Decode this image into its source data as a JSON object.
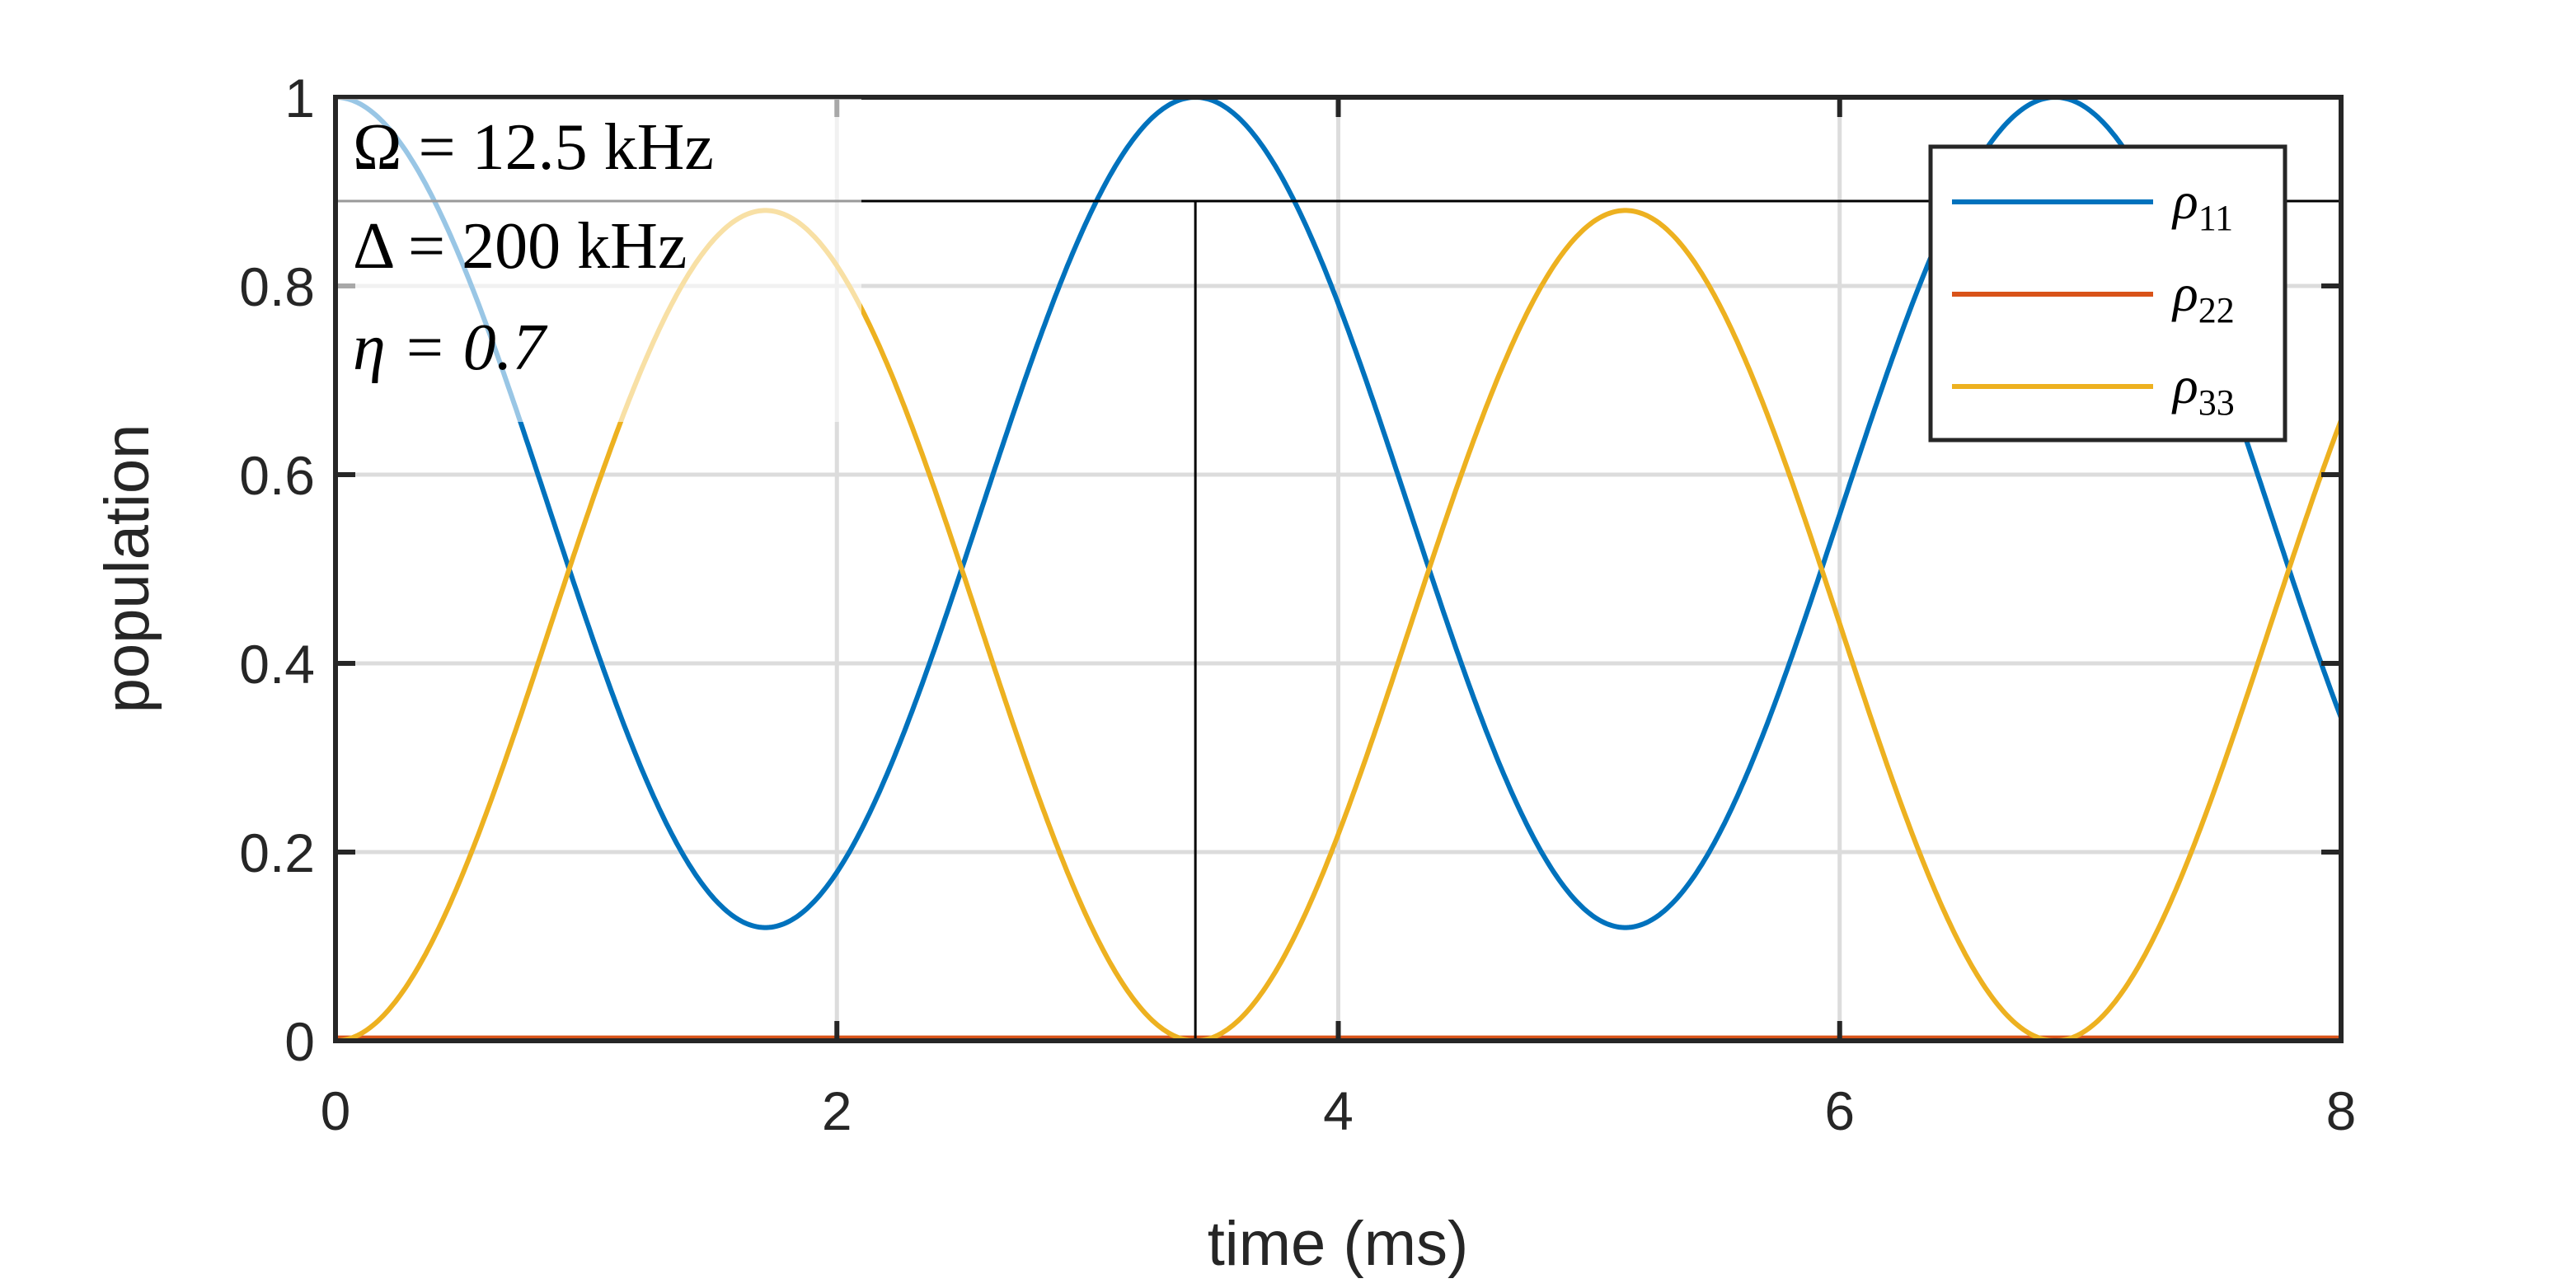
{
  "chart_data": {
    "type": "line",
    "xlabel": "time (ms)",
    "ylabel": "population",
    "xlim": [
      0,
      8
    ],
    "ylim": [
      0,
      1
    ],
    "x_ticks": [
      0,
      2,
      4,
      6,
      8
    ],
    "y_ticks": [
      0,
      0.2,
      0.4,
      0.6,
      0.8,
      1
    ],
    "x_tick_labels": [
      "0",
      "2",
      "4",
      "6",
      "8"
    ],
    "y_tick_labels": [
      "0",
      "0.2",
      "0.4",
      "0.6",
      "0.8",
      "1"
    ],
    "grid": true,
    "legend_position": "top-right",
    "series": [
      {
        "name": "ρ11",
        "color": "#0072BD",
        "model": {
          "offset": 0.56,
          "amplitude": 0.44,
          "period_ms": 3.43,
          "phase": "cos"
        }
      },
      {
        "name": "ρ22",
        "color": "#D95319",
        "model": {
          "offset": 0.003,
          "amplitude": 0,
          "period_ms": 3.43,
          "phase": "cos"
        }
      },
      {
        "name": "ρ33",
        "color": "#EDB120",
        "model": {
          "offset": 0.44,
          "amplitude": -0.44,
          "period_ms": 3.43,
          "phase": "cos"
        }
      }
    ],
    "annotations": {
      "parameters": [
        "Ω = 12.5 kHz",
        "Δ = 200 kHz",
        "η = 0.7"
      ],
      "cursor": {
        "x": 3.43,
        "y": 0.89
      }
    }
  }
}
